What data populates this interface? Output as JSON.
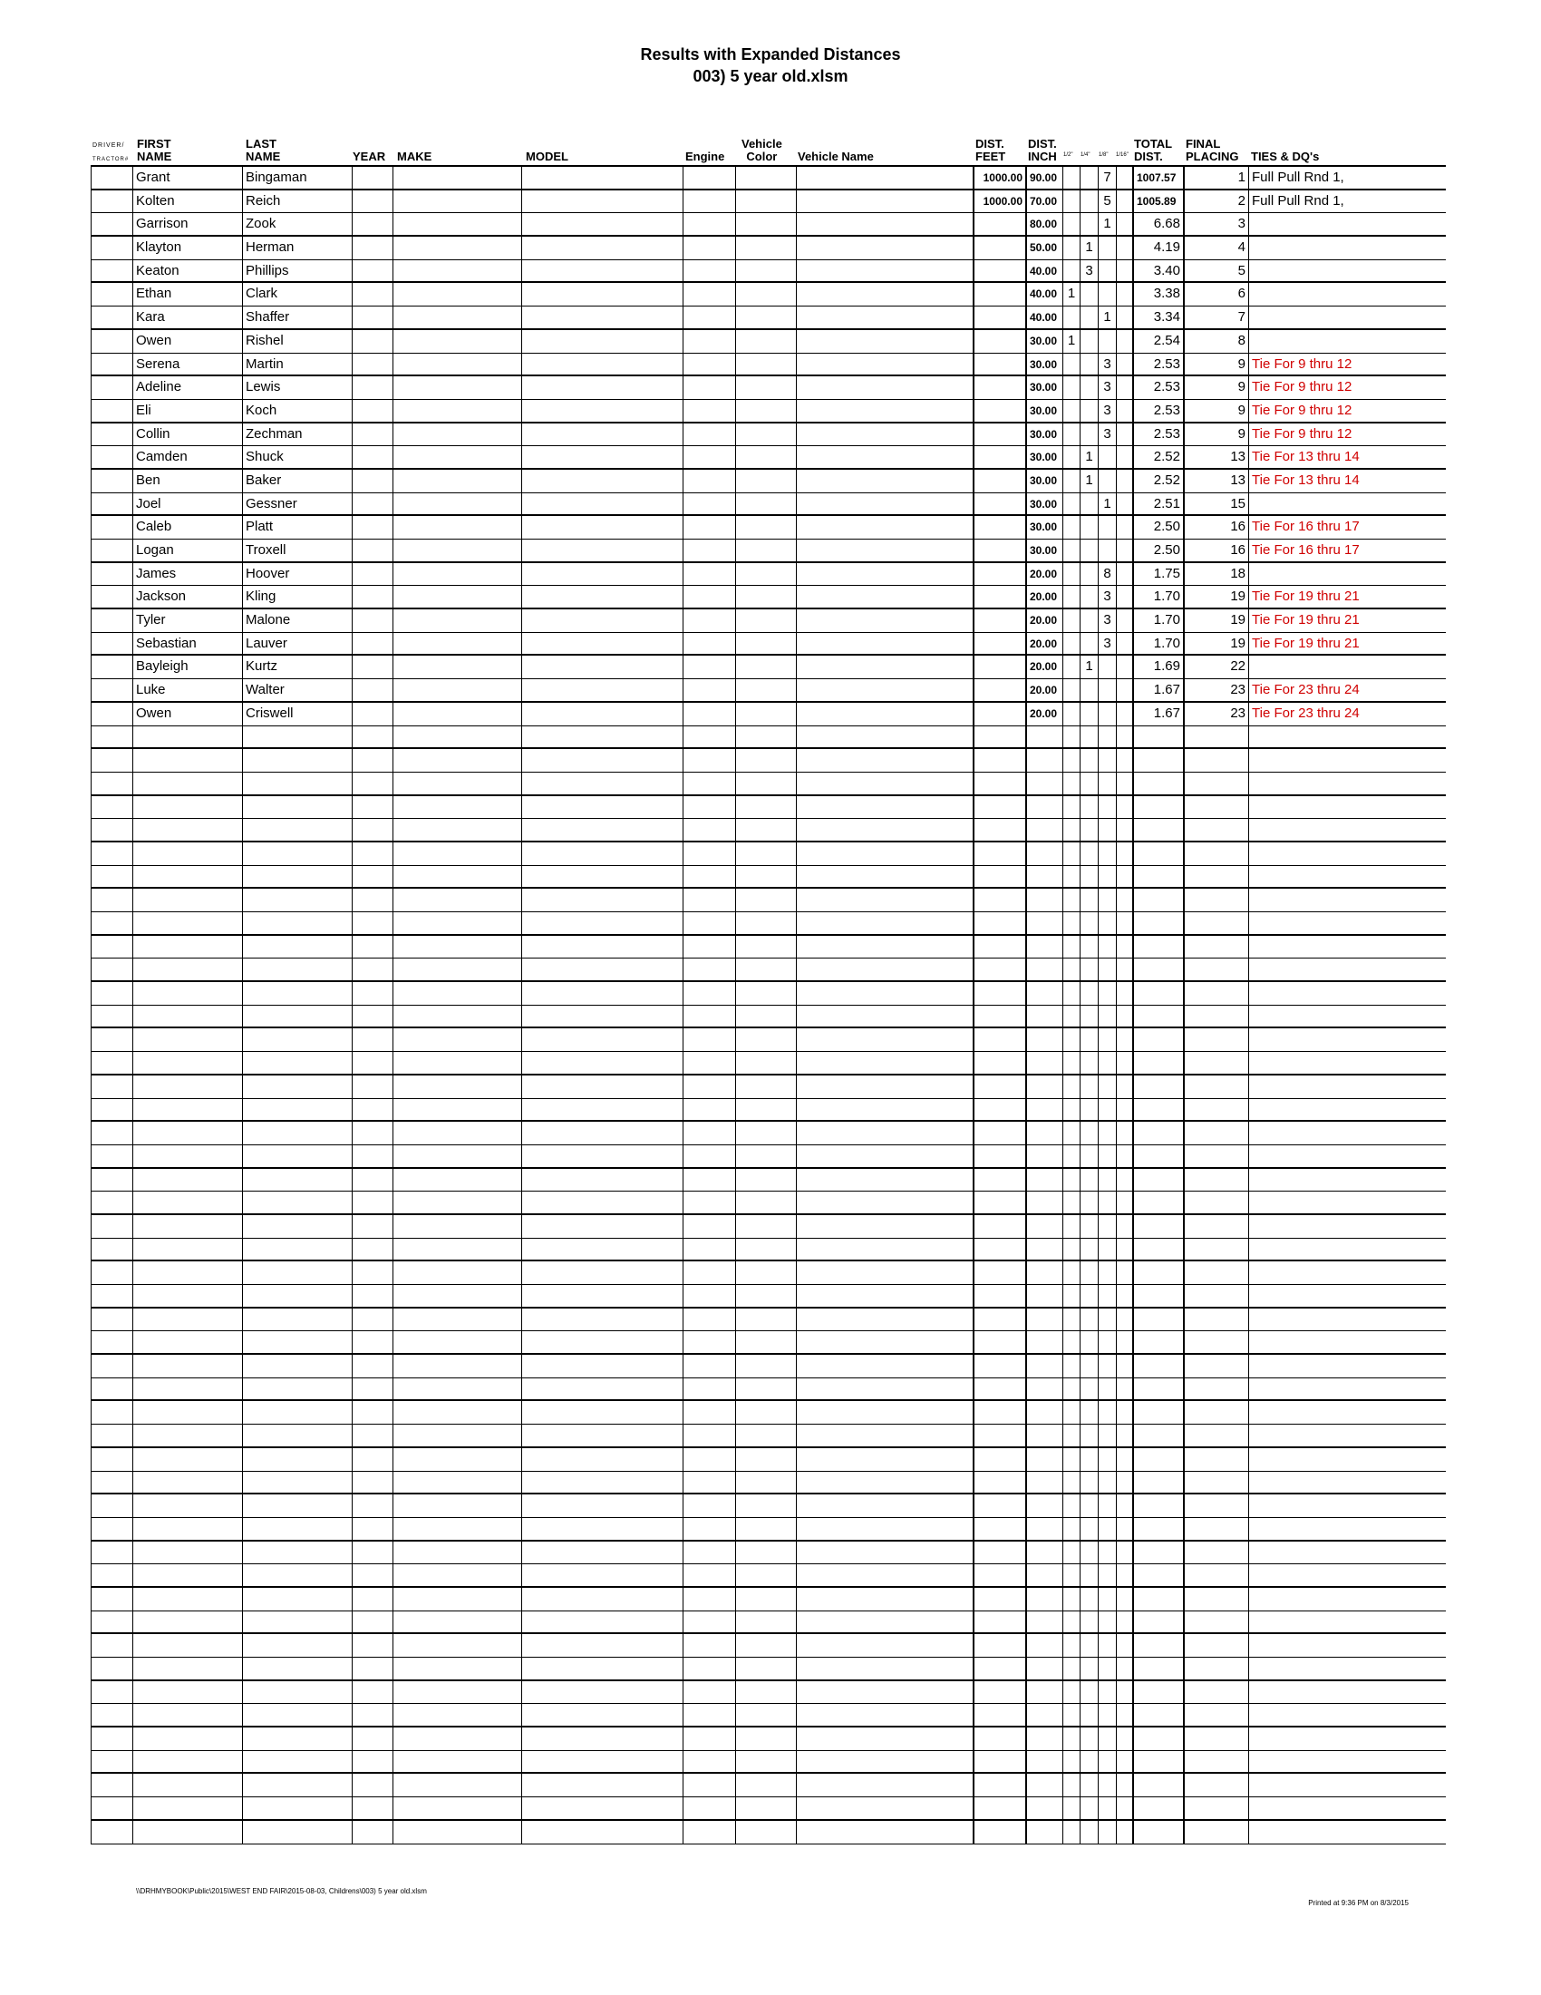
{
  "title": "Results with Expanded Distances",
  "subtitle": "003) 5 year old.xlsm",
  "headers": {
    "driver": "DRIVER/",
    "tractor": "TRACTOR#",
    "first1": "FIRST",
    "first2": "NAME",
    "last1": "LAST",
    "last2": "NAME",
    "year": "YEAR",
    "make": "MAKE",
    "model": "MODEL",
    "engine": "Engine",
    "color1": "Vehicle",
    "color2": "Color",
    "vname": "Vehicle Name",
    "feet1": "DIST.",
    "feet2": "FEET",
    "inch1": "DIST.",
    "inch2": "INCH",
    "half": "1/2\"",
    "quarter": "1/4\"",
    "eighth": "1/8\"",
    "sixteenth": "1/16\"",
    "total1": "TOTAL",
    "total2": "DIST.",
    "place1": "FINAL",
    "place2": "PLACING",
    "ties": "TIES & DQ's"
  },
  "rows": [
    {
      "first": "Grant",
      "last": "Bingaman",
      "feet": "1000.00",
      "inch": "90.00",
      "eighth": "7",
      "total": "1007.57",
      "place": "1",
      "ties": "Full Pull Rnd 1,",
      "tie_red": false
    },
    {
      "first": "Kolten",
      "last": "Reich",
      "feet": "1000.00",
      "inch": "70.00",
      "eighth": "5",
      "total": "1005.89",
      "place": "2",
      "ties": "Full Pull Rnd 1,",
      "tie_red": false
    },
    {
      "first": "Garrison",
      "last": "Zook",
      "inch": "80.00",
      "eighth": "1",
      "total": "6.68",
      "place": "3"
    },
    {
      "first": "Klayton",
      "last": "Herman",
      "inch": "50.00",
      "quarter": "1",
      "total": "4.19",
      "place": "4"
    },
    {
      "first": "Keaton",
      "last": "Phillips",
      "inch": "40.00",
      "quarter": "3",
      "total": "3.40",
      "place": "5"
    },
    {
      "first": "Ethan",
      "last": "Clark",
      "inch": "40.00",
      "half": "1",
      "total": "3.38",
      "place": "6"
    },
    {
      "first": "Kara",
      "last": "Shaffer",
      "inch": "40.00",
      "eighth": "1",
      "total": "3.34",
      "place": "7"
    },
    {
      "first": "Owen",
      "last": "Rishel",
      "inch": "30.00",
      "half": "1",
      "total": "2.54",
      "place": "8"
    },
    {
      "first": "Serena",
      "last": "Martin",
      "inch": "30.00",
      "eighth": "3",
      "total": "2.53",
      "place": "9",
      "ties": "Tie For 9 thru 12",
      "tie_red": true
    },
    {
      "first": "Adeline",
      "last": "Lewis",
      "inch": "30.00",
      "eighth": "3",
      "total": "2.53",
      "place": "9",
      "ties": "Tie For 9 thru 12",
      "tie_red": true
    },
    {
      "first": "Eli",
      "last": "Koch",
      "inch": "30.00",
      "eighth": "3",
      "total": "2.53",
      "place": "9",
      "ties": "Tie For 9 thru 12",
      "tie_red": true
    },
    {
      "first": "Collin",
      "last": "Zechman",
      "inch": "30.00",
      "eighth": "3",
      "total": "2.53",
      "place": "9",
      "ties": "Tie For 9 thru 12",
      "tie_red": true
    },
    {
      "first": "Camden",
      "last": "Shuck",
      "inch": "30.00",
      "quarter": "1",
      "total": "2.52",
      "place": "13",
      "ties": "Tie For 13 thru 14",
      "tie_red": true
    },
    {
      "first": "Ben",
      "last": "Baker",
      "inch": "30.00",
      "quarter": "1",
      "total": "2.52",
      "place": "13",
      "ties": "Tie For 13 thru 14",
      "tie_red": true
    },
    {
      "first": "Joel",
      "last": "Gessner",
      "inch": "30.00",
      "eighth": "1",
      "total": "2.51",
      "place": "15"
    },
    {
      "first": "Caleb",
      "last": "Platt",
      "inch": "30.00",
      "total": "2.50",
      "place": "16",
      "ties": "Tie For 16 thru 17",
      "tie_red": true
    },
    {
      "first": "Logan",
      "last": "Troxell",
      "inch": "30.00",
      "total": "2.50",
      "place": "16",
      "ties": "Tie For 16 thru 17",
      "tie_red": true
    },
    {
      "first": "James",
      "last": "Hoover",
      "inch": "20.00",
      "eighth": "8",
      "total": "1.75",
      "place": "18"
    },
    {
      "first": "Jackson",
      "last": "Kling",
      "inch": "20.00",
      "eighth": "3",
      "total": "1.70",
      "place": "19",
      "ties": "Tie For 19 thru 21",
      "tie_red": true
    },
    {
      "first": "Tyler",
      "last": "Malone",
      "inch": "20.00",
      "eighth": "3",
      "total": "1.70",
      "place": "19",
      "ties": "Tie For 19 thru 21",
      "tie_red": true
    },
    {
      "first": "Sebastian",
      "last": "Lauver",
      "inch": "20.00",
      "eighth": "3",
      "total": "1.70",
      "place": "19",
      "ties": "Tie For 19 thru 21",
      "tie_red": true
    },
    {
      "first": "Bayleigh",
      "last": "Kurtz",
      "inch": "20.00",
      "quarter": "1",
      "total": "1.69",
      "place": "22"
    },
    {
      "first": "Luke",
      "last": "Walter",
      "inch": "20.00",
      "total": "1.67",
      "place": "23",
      "ties": "Tie For 23 thru 24",
      "tie_red": true
    },
    {
      "first": "Owen",
      "last": "Criswell",
      "inch": "20.00",
      "total": "1.67",
      "place": "23",
      "ties": "Tie For 23 thru 24",
      "tie_red": true
    }
  ],
  "empty_rows": 48,
  "tie_color": "#d00000",
  "footer": {
    "path": "\\\\DRHMYBOOK\\Public\\2015\\WEST END FAIR\\2015-08-03, Childrens\\003) 5 year old.xlsm",
    "printed": "Printed at 9:36 PM on 8/3/2015"
  }
}
